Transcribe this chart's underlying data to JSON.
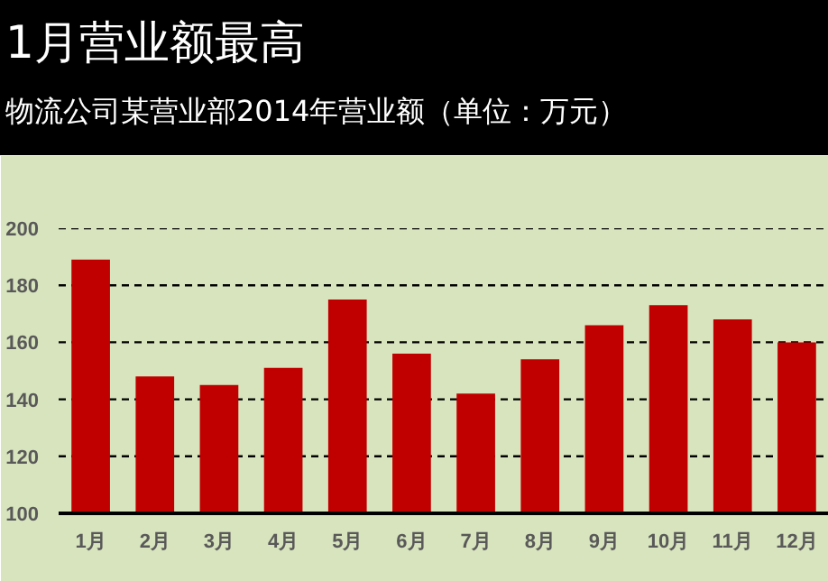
{
  "chart_data": {
    "type": "bar",
    "title": "1月营业额最高",
    "subtitle": "物流公司某营业部2014年营业额（单位：万元）",
    "categories": [
      "1月",
      "2月",
      "3月",
      "4月",
      "5月",
      "6月",
      "7月",
      "8月",
      "9月",
      "10月",
      "11月",
      "12月"
    ],
    "values": [
      189,
      148,
      145,
      151,
      175,
      156,
      142,
      154,
      166,
      173,
      168,
      160
    ],
    "color": "#c00000",
    "ylim": [
      100,
      200
    ],
    "yticks": [
      100,
      120,
      140,
      160,
      180,
      200
    ],
    "grid": "y"
  }
}
